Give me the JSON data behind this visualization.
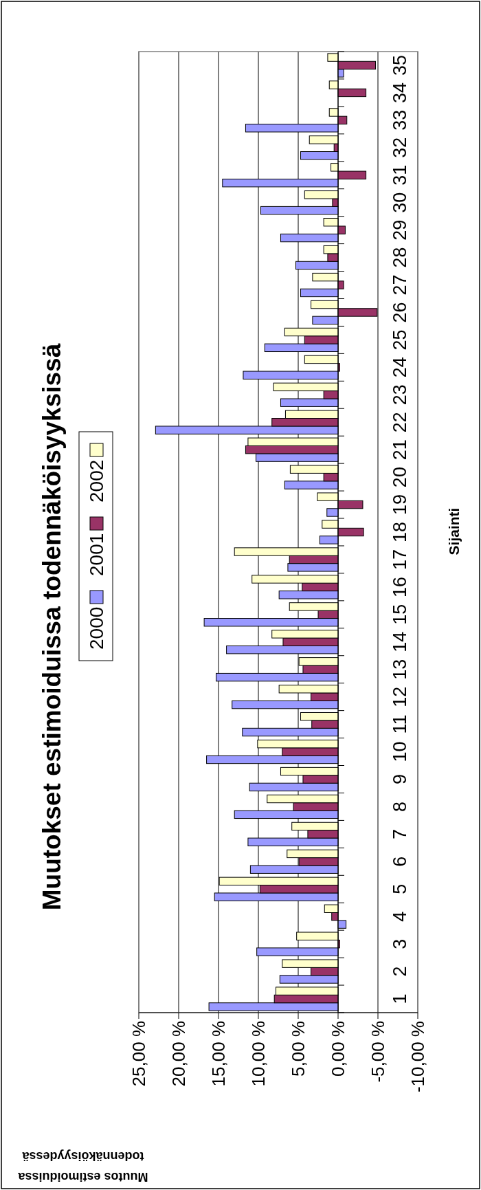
{
  "chart_data": {
    "type": "bar",
    "orientation": "horizontal",
    "title": "Muutokset estimoiduissa todennäköisyyksissä",
    "xlabel": "Muutos estimoiduissa todennäköisyydessä",
    "ylabel": "Sijainti",
    "categories": [
      "35",
      "34",
      "33",
      "32",
      "31",
      "30",
      "29",
      "28",
      "27",
      "26",
      "25",
      "24",
      "23",
      "22",
      "21",
      "20",
      "19",
      "18",
      "17",
      "16",
      "15",
      "14",
      "13",
      "12",
      "11",
      "10",
      "9",
      "8",
      "7",
      "6",
      "5",
      "4",
      "3",
      "2",
      "1"
    ],
    "series": [
      {
        "name": "2000",
        "color": "#9999ff",
        "values": [
          -0.7,
          null,
          11.6,
          4.7,
          14.5,
          9.7,
          7.2,
          5.3,
          4.7,
          3.2,
          9.2,
          11.9,
          7.2,
          22.9,
          10.3,
          6.7,
          1.4,
          2.3,
          6.3,
          7.4,
          16.8,
          14.0,
          15.3,
          13.3,
          12.0,
          16.5,
          11.1,
          13.0,
          11.3,
          11.0,
          15.5,
          -1.0,
          10.2,
          7.3,
          16.2
        ]
      },
      {
        "name": "2001",
        "color": "#993366",
        "values": [
          -4.7,
          -3.5,
          -1.1,
          0.5,
          -3.5,
          0.7,
          -0.9,
          1.3,
          -0.7,
          -4.9,
          4.2,
          -0.2,
          1.8,
          8.3,
          11.6,
          1.8,
          -3.1,
          -3.2,
          6.1,
          4.5,
          2.5,
          6.9,
          4.4,
          3.4,
          3.3,
          7.0,
          4.4,
          5.6,
          3.8,
          4.9,
          9.8,
          0.8,
          -0.2,
          3.4,
          8.0
        ]
      },
      {
        "name": "2002",
        "color": "#ffffcc",
        "values": [
          1.3,
          1.1,
          1.1,
          3.6,
          0.9,
          4.2,
          1.8,
          1.8,
          3.2,
          3.4,
          6.7,
          4.2,
          8.1,
          6.6,
          11.3,
          6.0,
          2.6,
          2.0,
          13.0,
          10.8,
          6.1,
          8.3,
          4.9,
          7.4,
          4.7,
          10.1,
          7.2,
          8.9,
          5.8,
          6.4,
          14.9,
          1.7,
          5.2,
          7.0,
          7.8
        ]
      }
    ],
    "xlim": [
      25,
      -10
    ],
    "xticks": [
      {
        "value": 25,
        "label": "25,00 %"
      },
      {
        "value": 20,
        "label": "20,00 %"
      },
      {
        "value": 15,
        "label": "15,00 %"
      },
      {
        "value": 10,
        "label": "10,00 %"
      },
      {
        "value": 5,
        "label": "5,00 %"
      },
      {
        "value": 0,
        "label": "0,00 %"
      },
      {
        "value": -5,
        "label": "-5,00 %"
      },
      {
        "value": -10,
        "label": "-10,00 %"
      }
    ],
    "grid": "x",
    "legend": "left"
  }
}
